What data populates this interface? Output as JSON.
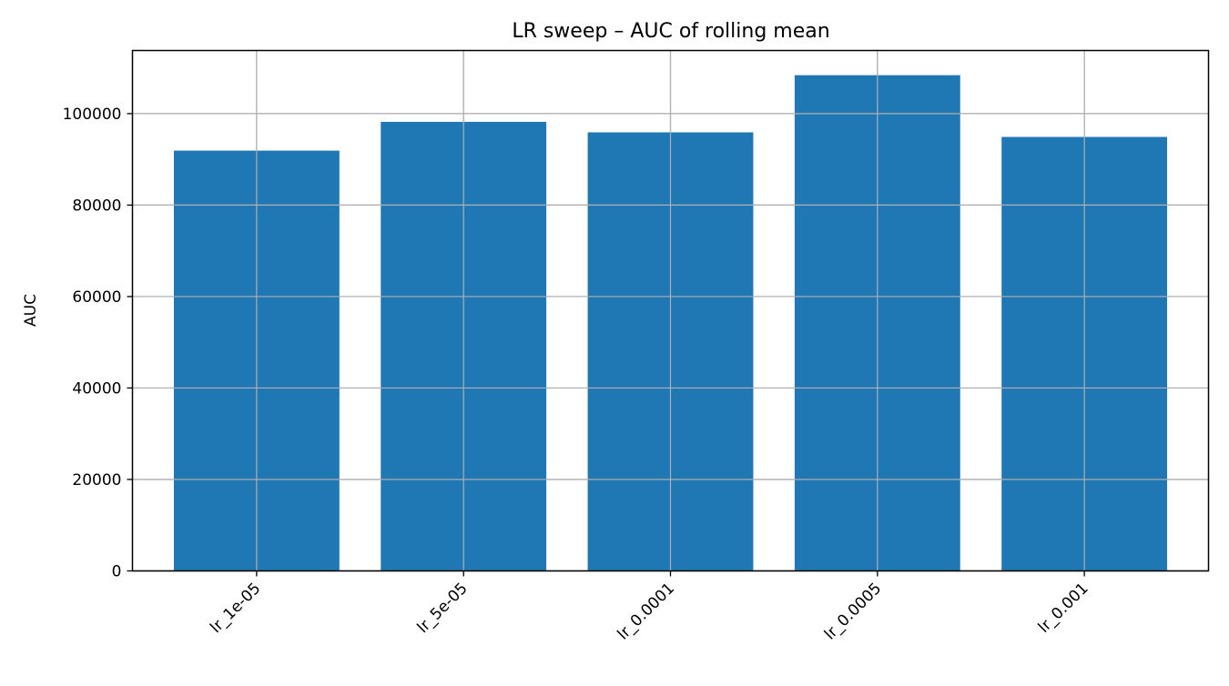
{
  "chart_data": {
    "type": "bar",
    "title": "LR sweep – AUC of rolling mean",
    "xlabel": "",
    "ylabel": "AUC",
    "categories": [
      "lr_1e-05",
      "lr_5e-05",
      "lr_0.0001",
      "lr_0.0005",
      "lr_0.001"
    ],
    "values": [
      91900,
      98200,
      95900,
      108400,
      94900
    ],
    "ylim": [
      0,
      113800
    ],
    "yticks": [
      0,
      20000,
      40000,
      60000,
      80000,
      100000
    ],
    "ytick_labels": [
      "0",
      "20000",
      "40000",
      "60000",
      "80000",
      "100000"
    ],
    "grid": true,
    "legend": "none",
    "bar_color": "#1f77b4",
    "grid_color": "#b0b0b0"
  }
}
